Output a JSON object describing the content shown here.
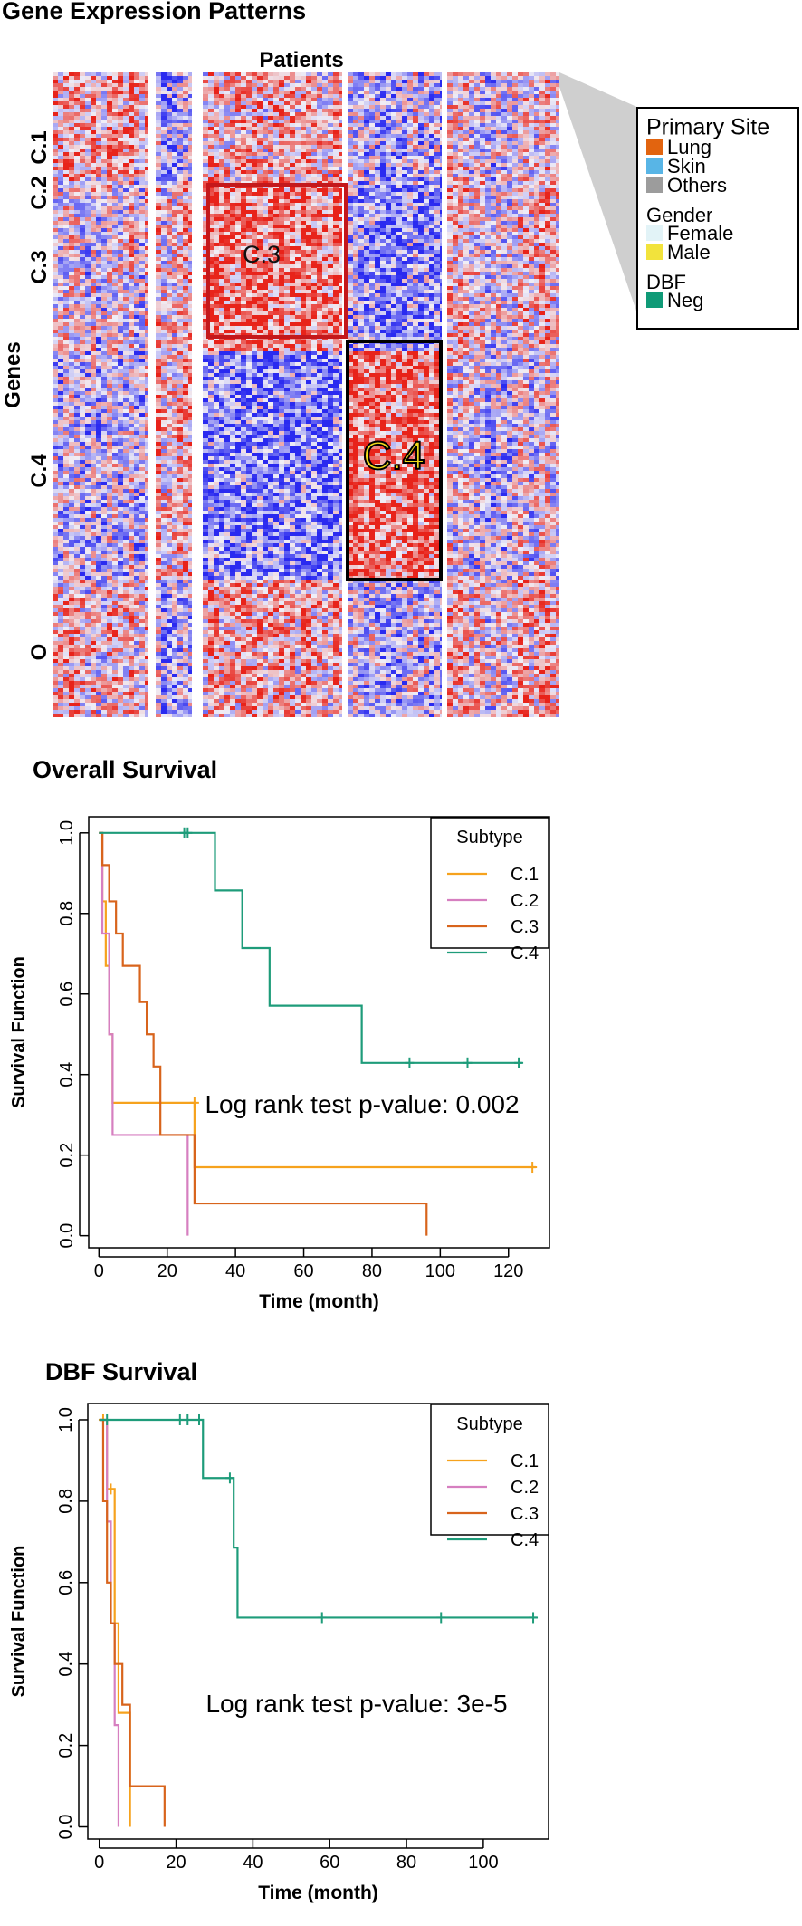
{
  "figure": {
    "panel1_title": "Gene Expression Patterns",
    "panel2_title": "Overall Survival",
    "panel3_title": "DBF Survival"
  },
  "heatmap": {
    "x_label": "Patients",
    "y_label": "Genes",
    "row_groups": [
      "C.1",
      "C.2",
      "C.3",
      "C.4",
      "O"
    ],
    "highlight_labels": [
      "C.3",
      "C.4"
    ],
    "legend": {
      "sections": [
        {
          "title": "Primary Site",
          "items": [
            {
              "label": "Lung",
              "color": "#e2640f"
            },
            {
              "label": "Skin",
              "color": "#58b5e6"
            },
            {
              "label": "Others",
              "color": "#9c9c9c"
            }
          ]
        },
        {
          "title": "Gender",
          "items": [
            {
              "label": "Female",
              "color": "#e2f3f7"
            },
            {
              "label": "Male",
              "color": "#f2e33c"
            }
          ]
        },
        {
          "title": "DBF",
          "items": [
            {
              "label": "Neg",
              "color": "#0f9a77"
            }
          ]
        }
      ]
    }
  },
  "chart_data": [
    {
      "type": "heatmap",
      "title": "Gene Expression Patterns",
      "xlabel": "Patients",
      "ylabel": "Genes",
      "column_groups": 5,
      "row_groups": [
        "C.1",
        "C.2",
        "C.3",
        "C.4",
        "O"
      ],
      "color_scale": {
        "low": "#2a2af0",
        "mid": "#f0eef6",
        "high": "#e8231a"
      }
    },
    {
      "type": "line",
      "title": "Overall Survival",
      "xlabel": "Time (month)",
      "ylabel": "Survival Function",
      "xlim": [
        -3,
        132
      ],
      "ylim": [
        -0.03,
        1.04
      ],
      "xticks": [
        "0",
        "20",
        "40",
        "60",
        "80",
        "100",
        "120"
      ],
      "yticks": [
        "0.0",
        "0.2",
        "0.4",
        "0.6",
        "0.8",
        "1.0"
      ],
      "legend_title": "Subtype",
      "annotation": "Log rank test p-value: 0.002",
      "series": [
        {
          "name": "C.1",
          "color": "#f6a21d",
          "steps": [
            [
              0,
              1.0
            ],
            [
              1,
              0.83
            ],
            [
              2,
              0.67
            ],
            [
              3,
              0.5
            ],
            [
              4,
              0.33
            ],
            [
              28,
              0.17
            ],
            [
              128,
              0.17
            ]
          ],
          "censor": [
            [
              28,
              0.33
            ],
            [
              127,
              0.17
            ]
          ]
        },
        {
          "name": "C.2",
          "color": "#d67fc0",
          "steps": [
            [
              0,
              1.0
            ],
            [
              1,
              0.75
            ],
            [
              3,
              0.5
            ],
            [
              4,
              0.25
            ],
            [
              26,
              0.0
            ],
            [
              26,
              0.0
            ]
          ],
          "censor": []
        },
        {
          "name": "C.3",
          "color": "#d8641c",
          "steps": [
            [
              0,
              1.0
            ],
            [
              1,
              0.92
            ],
            [
              3,
              0.83
            ],
            [
              5,
              0.75
            ],
            [
              7,
              0.67
            ],
            [
              12,
              0.58
            ],
            [
              14,
              0.5
            ],
            [
              16,
              0.42
            ],
            [
              18,
              0.25
            ],
            [
              28,
              0.08
            ],
            [
              96,
              0.0
            ]
          ],
          "censor": []
        },
        {
          "name": "C.4",
          "color": "#1e9c7a",
          "steps": [
            [
              0,
              1.0
            ],
            [
              34,
              0.857
            ],
            [
              42,
              0.714
            ],
            [
              50,
              0.571
            ],
            [
              77,
              0.429
            ],
            [
              124,
              0.429
            ]
          ],
          "censor": [
            [
              25,
              1.0
            ],
            [
              26,
              1.0
            ],
            [
              91,
              0.429
            ],
            [
              108,
              0.429
            ],
            [
              123,
              0.429
            ]
          ]
        }
      ]
    },
    {
      "type": "line",
      "title": "DBF Survival",
      "xlabel": "Time (month)",
      "ylabel": "Survival Function",
      "xlim": [
        -3,
        117
      ],
      "ylim": [
        -0.03,
        1.04
      ],
      "xticks": [
        "0",
        "20",
        "40",
        "60",
        "80",
        "100"
      ],
      "yticks": [
        "0.0",
        "0.2",
        "0.4",
        "0.6",
        "0.8",
        "1.0"
      ],
      "legend_title": "Subtype",
      "annotation": "Log rank test p-value: 3e-5",
      "series": [
        {
          "name": "C.1",
          "color": "#f6a21d",
          "steps": [
            [
              0,
              1.0
            ],
            [
              2,
              0.83
            ],
            [
              4,
              0.5
            ],
            [
              5,
              0.28
            ],
            [
              8,
              0.0
            ],
            [
              8,
              0.0
            ]
          ],
          "censor": [
            [
              1,
              1.0
            ],
            [
              3,
              0.83
            ]
          ]
        },
        {
          "name": "C.2",
          "color": "#d67fc0",
          "steps": [
            [
              0,
              1.0
            ],
            [
              2,
              0.75
            ],
            [
              3,
              0.5
            ],
            [
              4,
              0.25
            ],
            [
              5,
              0.0
            ],
            [
              5,
              0.0
            ]
          ],
          "censor": []
        },
        {
          "name": "C.3",
          "color": "#d8641c",
          "steps": [
            [
              0,
              1.0
            ],
            [
              1,
              0.8
            ],
            [
              2,
              0.6
            ],
            [
              3,
              0.5
            ],
            [
              4,
              0.4
            ],
            [
              6,
              0.3
            ],
            [
              8,
              0.1
            ],
            [
              17,
              0.0
            ],
            [
              17,
              0.0
            ]
          ],
          "censor": []
        },
        {
          "name": "C.4",
          "color": "#1e9c7a",
          "steps": [
            [
              0,
              1.0
            ],
            [
              27,
              0.857
            ],
            [
              35,
              0.686
            ],
            [
              36,
              0.514
            ],
            [
              114,
              0.514
            ]
          ],
          "censor": [
            [
              2,
              1.0
            ],
            [
              21,
              1.0
            ],
            [
              23,
              1.0
            ],
            [
              26,
              1.0
            ],
            [
              34,
              0.857
            ],
            [
              58,
              0.514
            ],
            [
              89,
              0.514
            ],
            [
              113,
              0.514
            ]
          ]
        }
      ]
    }
  ]
}
